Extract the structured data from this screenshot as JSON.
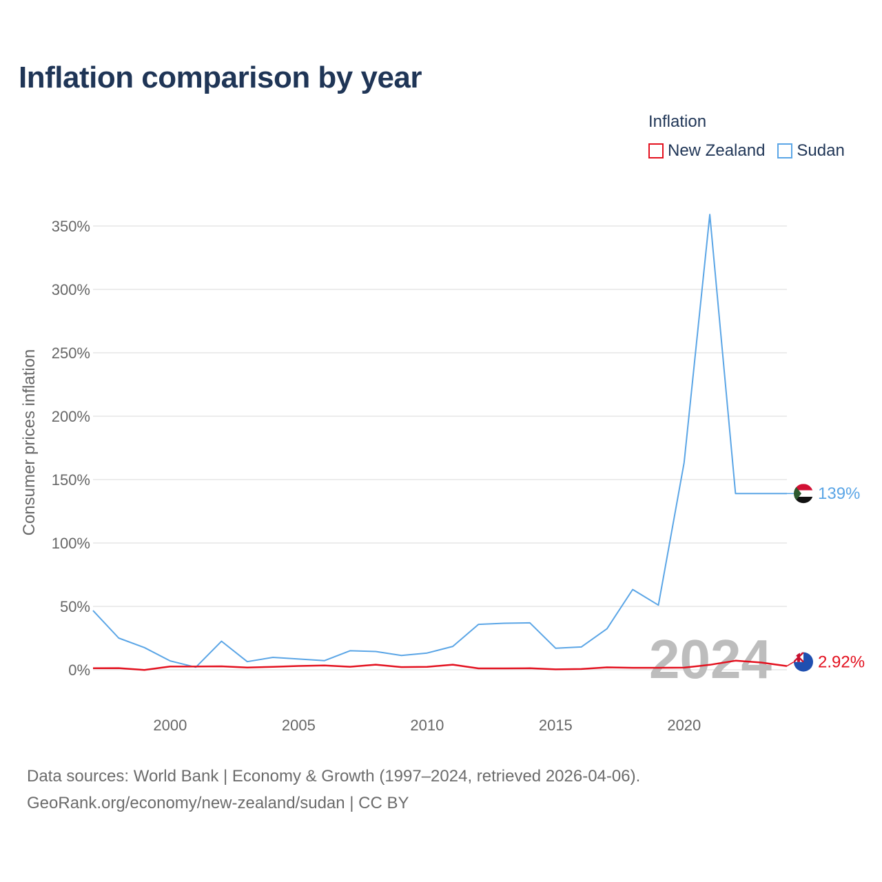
{
  "colors": {
    "new_zealand": "#e3101e",
    "sudan": "#5aa5e6",
    "title": "#1f3556",
    "grid": "#e6e6e6",
    "nz_flag_blue": "#1f4fb0",
    "sudan_flag_green": "#2e5a2e"
  },
  "chart_data": {
    "type": "line",
    "title": "Inflation comparison by year",
    "legend_title": "Inflation",
    "ylabel": "Consumer prices inflation",
    "xlabel": "",
    "year_label": "2024",
    "xlim": [
      1997,
      2024
    ],
    "ylim": [
      -20,
      370
    ],
    "x_ticks": [
      2000,
      2005,
      2010,
      2015,
      2020
    ],
    "x_tick_labels": [
      "2000",
      "2005",
      "2010",
      "2015",
      "2020"
    ],
    "y_ticks": [
      0,
      50,
      100,
      150,
      200,
      250,
      300,
      350
    ],
    "y_tick_labels": [
      "0%",
      "50%",
      "100%",
      "150%",
      "200%",
      "250%",
      "300%",
      "350%"
    ],
    "x": [
      1997,
      1998,
      1999,
      2000,
      2001,
      2002,
      2003,
      2004,
      2005,
      2006,
      2007,
      2008,
      2009,
      2010,
      2011,
      2012,
      2013,
      2014,
      2015,
      2016,
      2017,
      2018,
      2019,
      2020,
      2021,
      2022,
      2023,
      2024
    ],
    "series": [
      {
        "name": "New Zealand",
        "color_key": "new_zealand",
        "end_label": "2.92%",
        "values": [
          1.2,
          1.3,
          -0.1,
          2.6,
          2.6,
          2.7,
          1.8,
          2.3,
          3.0,
          3.4,
          2.4,
          4.0,
          2.1,
          2.3,
          4.0,
          1.1,
          1.1,
          1.2,
          0.3,
          0.6,
          1.9,
          1.6,
          1.6,
          1.7,
          3.9,
          7.2,
          5.7,
          2.92
        ]
      },
      {
        "name": "Sudan",
        "color_key": "sudan",
        "end_label": "139%",
        "values": [
          46.7,
          25.0,
          17.5,
          7.0,
          2.0,
          22.5,
          6.4,
          9.8,
          8.5,
          7.2,
          15.0,
          14.4,
          11.3,
          13.2,
          18.4,
          35.8,
          36.7,
          37.0,
          17.0,
          18.0,
          32.4,
          63.3,
          51.0,
          163.3,
          359.1,
          139.0,
          139.0,
          139.0
        ]
      }
    ]
  },
  "footer": {
    "line1": "Data sources: World Bank | Economy & Growth (1997–2024, retrieved 2026-04-06).",
    "line2": "GeoRank.org/economy/new-zealand/sudan | CC BY"
  }
}
